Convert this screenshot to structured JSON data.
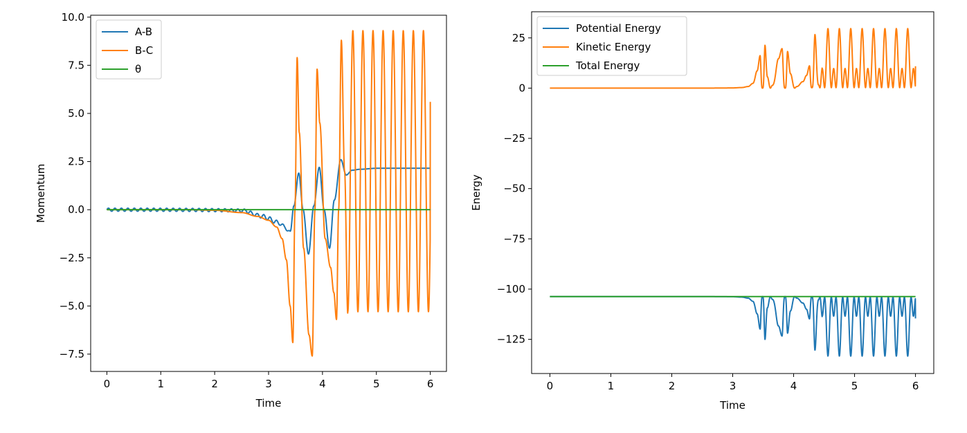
{
  "chart_data": [
    {
      "type": "line",
      "title": "",
      "xlabel": "Time",
      "ylabel": "Momentum",
      "xlim": [
        -0.3,
        6.3
      ],
      "ylim": [
        -8.4,
        10.1
      ],
      "xticks": [
        0,
        1,
        2,
        3,
        4,
        5,
        6
      ],
      "xtick_labels": [
        "0",
        "1",
        "2",
        "3",
        "4",
        "5",
        "6"
      ],
      "yticks": [
        -7.5,
        -5.0,
        -2.5,
        0.0,
        2.5,
        5.0,
        7.5,
        10.0
      ],
      "ytick_labels": [
        "−7.5",
        "−5.0",
        "−2.5",
        "0.0",
        "2.5",
        "5.0",
        "7.5",
        "10.0"
      ],
      "grid": false,
      "legend": "top-left",
      "series": [
        {
          "name": "A-B",
          "color": "#1f77b4",
          "generator": "small_oscillation",
          "oscillation": {
            "amplitude": 0.08,
            "period": 0.12,
            "until": 2.6
          },
          "points": [
            [
              2.6,
              -0.1
            ],
            [
              2.7,
              -0.2
            ],
            [
              2.8,
              -0.3
            ],
            [
              2.9,
              -0.35
            ],
            [
              3.0,
              -0.45
            ],
            [
              3.1,
              -0.6
            ],
            [
              3.2,
              -0.7
            ],
            [
              3.3,
              -0.9
            ],
            [
              3.4,
              -1.2
            ],
            [
              3.47,
              0.2
            ],
            [
              3.56,
              1.9
            ],
            [
              3.64,
              0.0
            ],
            [
              3.74,
              -2.3
            ],
            [
              3.84,
              0.2
            ],
            [
              3.94,
              2.2
            ],
            [
              4.03,
              0.0
            ],
            [
              4.13,
              -2.0
            ],
            [
              4.22,
              0.5
            ],
            [
              4.34,
              2.6
            ],
            [
              4.44,
              1.8
            ],
            [
              4.55,
              2.05
            ],
            [
              4.7,
              2.1
            ],
            [
              5.0,
              2.15
            ],
            [
              6.0,
              2.15
            ]
          ]
        },
        {
          "name": "B-C",
          "color": "#ff7f0e",
          "points": [
            [
              0,
              0.0
            ],
            [
              1.5,
              0.0
            ],
            [
              2.0,
              -0.03
            ],
            [
              2.5,
              -0.15
            ],
            [
              2.8,
              -0.35
            ],
            [
              3.0,
              -0.55
            ],
            [
              3.15,
              -0.9
            ],
            [
              3.25,
              -1.5
            ],
            [
              3.33,
              -2.6
            ],
            [
              3.4,
              -5.0
            ],
            [
              3.45,
              -6.9
            ],
            [
              3.49,
              0.0
            ],
            [
              3.53,
              7.9
            ],
            [
              3.57,
              4.0
            ],
            [
              3.65,
              -2.0
            ],
            [
              3.75,
              -6.5
            ],
            [
              3.81,
              -7.6
            ],
            [
              3.86,
              0.0
            ],
            [
              3.9,
              7.3
            ],
            [
              3.95,
              4.5
            ],
            [
              4.05,
              -1.5
            ],
            [
              4.15,
              -3.0
            ],
            [
              4.21,
              -4.3
            ],
            [
              4.26,
              -5.7
            ],
            [
              4.3,
              0.0
            ],
            [
              4.35,
              8.8
            ],
            [
              4.41,
              2.0
            ],
            [
              4.47,
              -5.4
            ]
          ],
          "oscillation": {
            "start": 4.47,
            "end": 6.0,
            "period": 0.187,
            "max": 9.3,
            "min": -5.3,
            "end_value": 5.6
          }
        },
        {
          "name": "θ",
          "color": "#2ca02c",
          "points": [
            [
              0,
              0.0
            ],
            [
              6,
              0.0
            ]
          ]
        }
      ]
    },
    {
      "type": "line",
      "title": "",
      "xlabel": "Time",
      "ylabel": "Energy",
      "xlim": [
        -0.3,
        6.3
      ],
      "ylim": [
        -142,
        38
      ],
      "xticks": [
        0,
        1,
        2,
        3,
        4,
        5,
        6
      ],
      "xtick_labels": [
        "0",
        "1",
        "2",
        "3",
        "4",
        "5",
        "6"
      ],
      "yticks": [
        -125,
        -100,
        -75,
        -50,
        -25,
        0,
        25
      ],
      "ytick_labels": [
        "−125",
        "−100",
        "−75",
        "−50",
        "−25",
        "0",
        "25"
      ],
      "grid": false,
      "legend": "top-left",
      "series": [
        {
          "name": "Potential Energy",
          "color": "#1f77b4",
          "derived": "total_minus_kinetic"
        },
        {
          "name": "Kinetic Energy",
          "color": "#ff7f0e",
          "derived": "from_momentum",
          "peaks": [
            23,
            24,
            22,
            22,
            23,
            25,
            30
          ],
          "peak_steady": 30,
          "trough_steady": 3
        },
        {
          "name": "Total Energy",
          "color": "#2ca02c",
          "points": [
            [
              0,
              -103.7
            ],
            [
              6,
              -103.7
            ]
          ]
        }
      ]
    }
  ]
}
